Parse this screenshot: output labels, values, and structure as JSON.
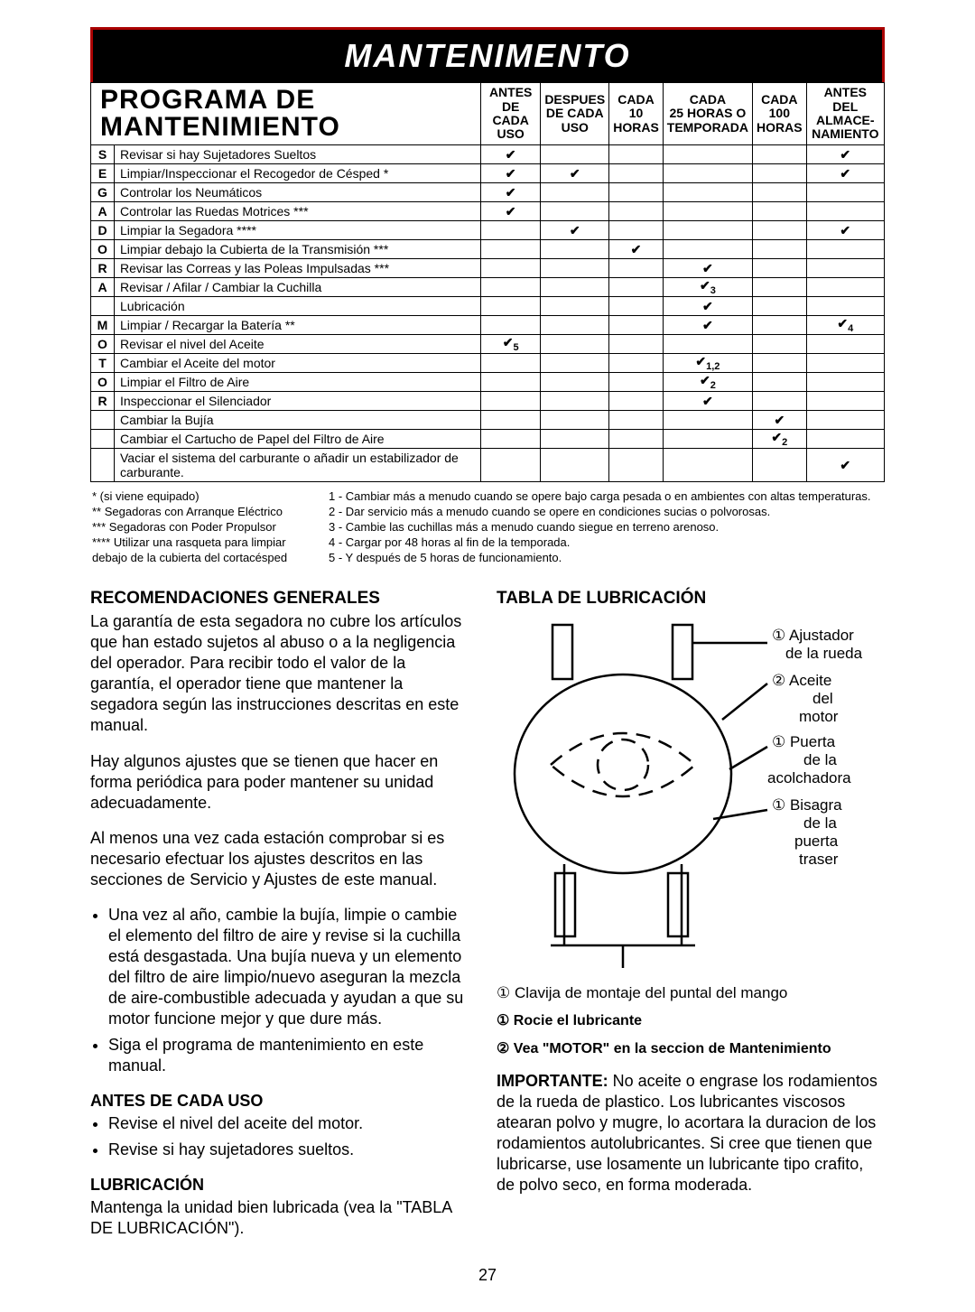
{
  "header": {
    "title": "MANTENIMENTO"
  },
  "schedule": {
    "title_line1": "PROGRAMA DE",
    "title_line2": "MANTENIMIENTO",
    "side_letters": [
      "S",
      "E",
      "G",
      "A",
      "D",
      "O",
      "R",
      "A",
      "",
      "M",
      "O",
      "T",
      "O",
      "R",
      ""
    ],
    "columns": [
      "ANTES DE CADA USO",
      "DESPUES DE CADA USO",
      "CADA 10 HORAS",
      "CADA 25 HORAS O TEMPORADA",
      "CADA 100 HORAS",
      "ANTES DEL ALMACE- NAMIENTO"
    ],
    "rows": [
      {
        "task": "Revisar si hay Sujetadores Sueltos",
        "c": [
          "✔",
          "",
          "",
          "",
          "",
          "✔"
        ]
      },
      {
        "task": "Limpiar/Inspeccionar el Recogedor de Césped *",
        "c": [
          "✔",
          "✔",
          "",
          "",
          "",
          "✔"
        ]
      },
      {
        "task": "Controlar los Neumáticos",
        "c": [
          "✔",
          "",
          "",
          "",
          "",
          ""
        ]
      },
      {
        "task": "Controlar las Ruedas Motrices ***",
        "c": [
          "✔",
          "",
          "",
          "",
          "",
          ""
        ]
      },
      {
        "task": "Limpiar la Segadora ****",
        "c": [
          "",
          "✔",
          "",
          "",
          "",
          "✔"
        ]
      },
      {
        "task": "Limpiar debajo la Cubierta de la Transmisión ***",
        "c": [
          "",
          "",
          "✔",
          "",
          "",
          ""
        ]
      },
      {
        "task": "Revisar las Correas y las Poleas Impulsadas ***",
        "c": [
          "",
          "",
          "",
          "✔",
          "",
          ""
        ]
      },
      {
        "task": "Revisar / Afilar / Cambiar la Cuchilla",
        "c": [
          "",
          "",
          "",
          "✔<sub>3</sub>",
          "",
          ""
        ]
      },
      {
        "task": "Lubricación",
        "c": [
          "",
          "",
          "",
          "✔",
          "",
          ""
        ]
      },
      {
        "task": "Limpiar / Recargar la Batería **",
        "c": [
          "",
          "",
          "",
          "✔",
          "",
          "✔<sub>4</sub>"
        ]
      },
      {
        "task": "Revisar el nivel del Aceite",
        "c": [
          "✔<sub>5</sub>",
          "",
          "",
          "",
          "",
          ""
        ]
      },
      {
        "task": "Cambiar el Aceite del motor",
        "c": [
          "",
          "",
          "",
          "✔<sub>1,2</sub>",
          "",
          ""
        ]
      },
      {
        "task": "Limpiar el Filtro de Aire",
        "c": [
          "",
          "",
          "",
          "✔<sub>2</sub>",
          "",
          ""
        ]
      },
      {
        "task": "Inspeccionar el Silenciador",
        "c": [
          "",
          "",
          "",
          "✔",
          "",
          ""
        ]
      },
      {
        "task": "Cambiar la Bujía",
        "c": [
          "",
          "",
          "",
          "",
          "✔",
          ""
        ]
      },
      {
        "task": "Cambiar el Cartucho de Papel del Filtro de Aire",
        "c": [
          "",
          "",
          "",
          "",
          "✔<sub>2</sub>",
          ""
        ]
      },
      {
        "task": "Vaciar el sistema del carburante o añadir un estabilizador de carburante.",
        "c": [
          "",
          "",
          "",
          "",
          "",
          "✔"
        ]
      }
    ]
  },
  "footnotes": {
    "left": [
      "* (si viene equipado)",
      "** Segadoras con Arranque Eléctrico",
      "*** Segadoras con Poder Propulsor",
      "**** Utilizar una rasqueta para limpiar",
      "debajo de la cubierta del cortacésped"
    ],
    "right": [
      "1 - Cambiar más a menudo cuando se opere bajo carga pesada o en ambientes con altas temperaturas.",
      "2 - Dar servicio más a menudo cuando se opere en condiciones sucias o polvorosas.",
      "3 - Cambie las cuchillas más a menudo cuando siegue en terreno arenoso.",
      "4 - Cargar por 48 horas al fin de la temporada.",
      "5 - Y después de 5 horas de funcionamiento."
    ]
  },
  "left_col": {
    "h1": "RECOMENDACIONES GENERALES",
    "p1": "La garantía de esta segadora no cubre los artículos que han estado sujetos al abuso o a la negligencia del operador. Para recibir todo el valor de la garantía, el operador tiene que mantener la segadora según las instrucciones descritas en este manual.",
    "p2": "Hay algunos ajustes que se tienen que hacer en forma periódica para poder mantener su unidad adecuadamente.",
    "p3": "Al menos una vez cada estación comprobar si es necesario efectuar los ajustes descritos en las secciones de Servicio y Ajustes de este manual.",
    "li1": "Una vez al año, cambie la bujía, limpie o cambie el elemento del filtro de aire y revise si la cuchilla está desgastada. Una bujía nueva y un elemento del filtro de aire limpio/nuevo aseguran la mezcla de aire-combustible adecuada y ayudan a que su motor funcione mejor y que dure más.",
    "li2": "Siga el programa de mantenimiento en este manual.",
    "h2": "ANTES DE CADA USO",
    "li3": "Revise el nivel del aceite del motor.",
    "li4": "Revise si hay sujetadores sueltos.",
    "h3": "LUBRICACIÓN",
    "p4": "Mantenga la unidad bien lubricada (vea la \"TABLA DE LUBRICACIÓN\")."
  },
  "right_col": {
    "h1": "TABLA DE LUBRICACIÓN",
    "labels": {
      "l1": "① Ajustador de la rueda",
      "l2": "② Aceite del motor",
      "l3": "① Puerta de la acolchadora",
      "l4": "① Bisagra de la puerta traser"
    },
    "caption": "① Clavija de montaje del puntal del mango",
    "legend1": "① Rocie el lubricante",
    "legend2": "② Vea \"MOTOR\" en la seccion de Mantenimiento",
    "p1_label": "IMPORTANTE:",
    "p1": " No aceite o engrase los rodamientos de la rueda de plastico. Los lubricantes viscosos atearan polvo y mugre, lo acortara la duracion de los rodamientos autolubricantes. Si cree que tienen que lubricarse, use losamente un lubricante tipo crafito, de polvo seco, en forma moderada."
  },
  "pagenum": "27"
}
